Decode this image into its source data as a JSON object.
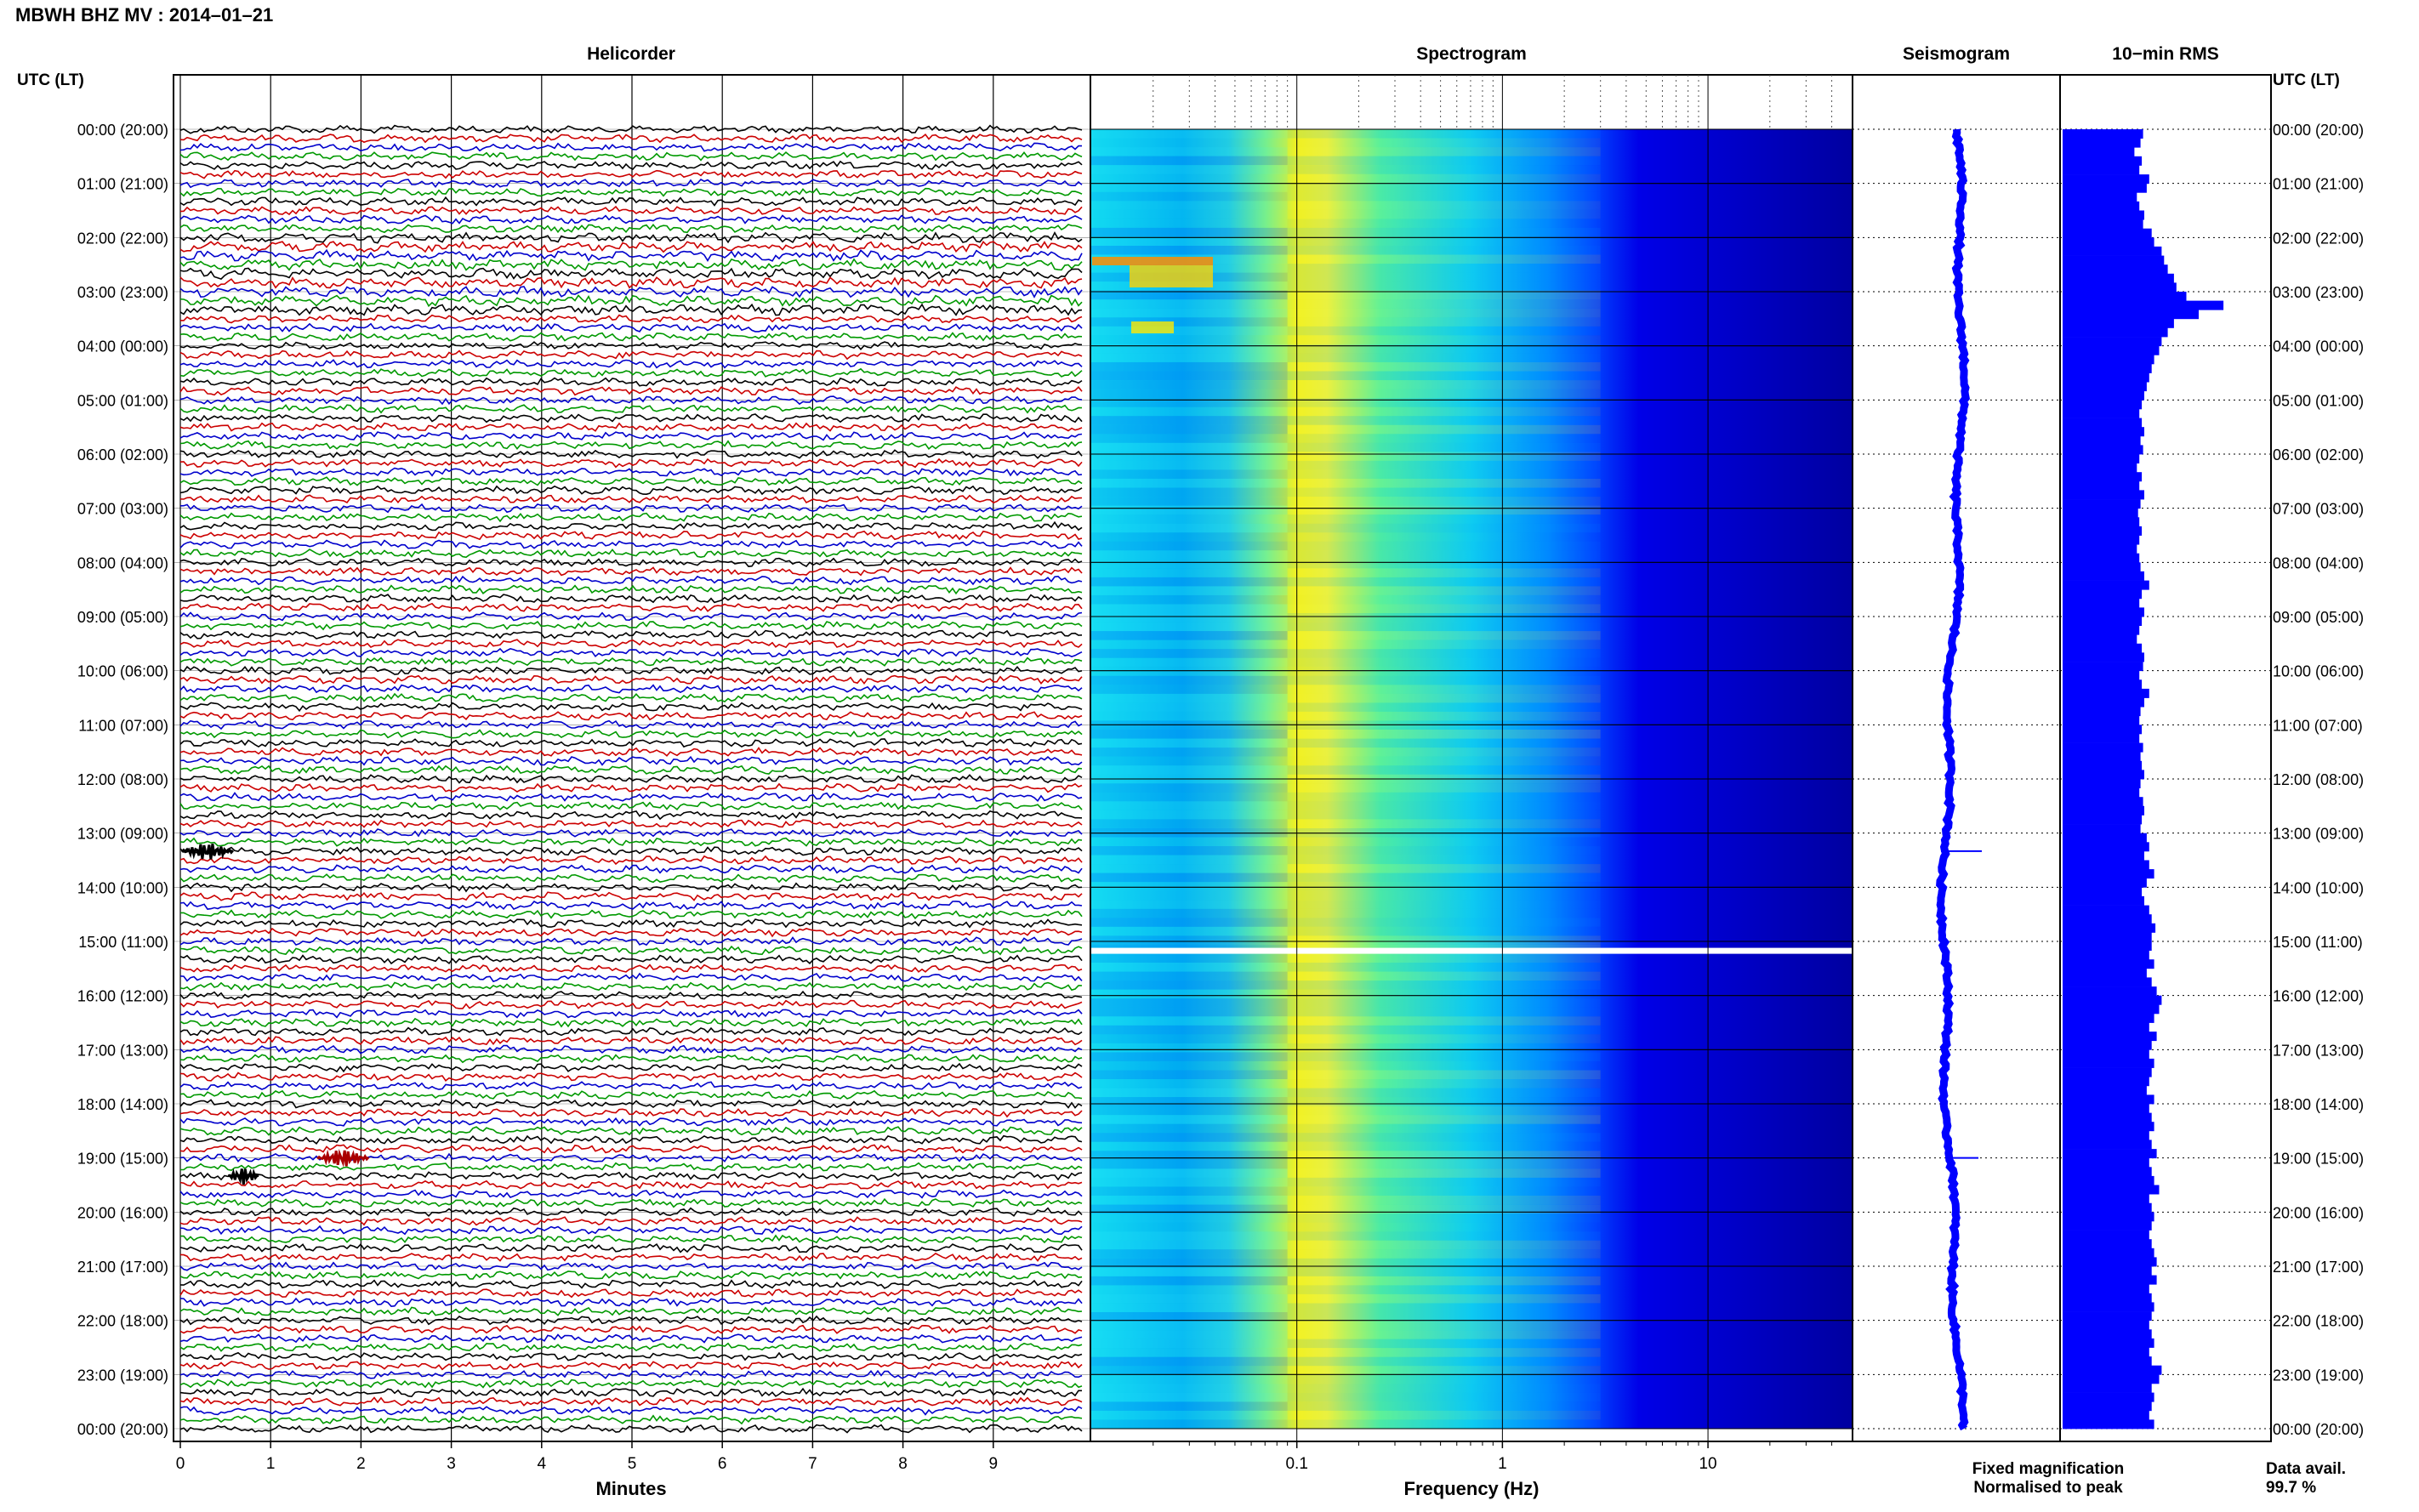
{
  "header": {
    "title": "MBWH BHZ MV : 2014–01–21"
  },
  "chart_data": [
    {
      "type": "line",
      "title": "Helicorder",
      "row_axis_label": "UTC (LT)",
      "xlabel": "Minutes",
      "xlim": [
        0,
        10
      ],
      "x_ticks": [
        "0",
        "1",
        "2",
        "3",
        "4",
        "5",
        "6",
        "7",
        "8",
        "9"
      ],
      "lines_per_hour": 6,
      "line_colors": [
        "#000000",
        "#cc0000",
        "#0000cc",
        "#009900"
      ],
      "row_labels": [
        "00:00 (20:00)",
        "01:00 (21:00)",
        "02:00 (22:00)",
        "03:00 (23:00)",
        "04:00 (00:00)",
        "05:00 (01:00)",
        "06:00 (02:00)",
        "07:00 (03:00)",
        "08:00 (04:00)",
        "09:00 (05:00)",
        "10:00 (06:00)",
        "11:00 (07:00)",
        "12:00 (08:00)",
        "13:00 (09:00)",
        "14:00 (10:00)",
        "15:00 (11:00)",
        "16:00 (12:00)",
        "17:00 (13:00)",
        "18:00 (14:00)",
        "19:00 (15:00)",
        "20:00 (16:00)",
        "21:00 (17:00)",
        "22:00 (18:00)",
        "23:00 (19:00)",
        "00:00 (20:00)"
      ],
      "events": [
        {
          "time": "13:20",
          "minute": 0.3
        },
        {
          "time": "19:00",
          "minute": 1.8
        },
        {
          "time": "19:20",
          "minute": 0.7
        }
      ]
    },
    {
      "type": "heatmap",
      "title": "Spectrogram",
      "xlabel": "Frequency (Hz)",
      "x_scale": "log",
      "xlim": [
        0.01,
        50
      ],
      "x_tick_labels": [
        "0.1",
        "1",
        "10"
      ],
      "colormap": [
        "#00008b",
        "#0000ff",
        "#0088ff",
        "#00e5ff",
        "#7fff7f",
        "#ffff00",
        "#ff8000",
        "#ff0000"
      ],
      "spectral_peak_hz": 0.3,
      "gap": "15:10"
    },
    {
      "type": "line",
      "title": "Seismogram"
    },
    {
      "type": "bar",
      "title": "10−min RMS",
      "color": "#0000ff",
      "values": [
        0.65,
        0.63,
        0.58,
        0.64,
        0.62,
        0.7,
        0.68,
        0.6,
        0.62,
        0.66,
        0.65,
        0.72,
        0.74,
        0.8,
        0.82,
        0.85,
        0.9,
        0.92,
        1.0,
        1.3,
        1.1,
        0.9,
        0.85,
        0.8,
        0.78,
        0.74,
        0.72,
        0.7,
        0.68,
        0.66,
        0.64,
        0.62,
        0.64,
        0.66,
        0.63,
        0.65,
        0.62,
        0.6,
        0.64,
        0.62,
        0.66,
        0.63,
        0.61,
        0.62,
        0.64,
        0.62,
        0.6,
        0.62,
        0.63,
        0.66,
        0.7,
        0.64,
        0.62,
        0.66,
        0.64,
        0.62,
        0.6,
        0.64,
        0.66,
        0.65,
        0.62,
        0.64,
        0.7,
        0.66,
        0.63,
        0.62,
        0.64,
        0.62,
        0.65,
        0.63,
        0.64,
        0.66,
        0.63,
        0.62,
        0.65,
        0.66,
        0.64,
        0.63,
        0.68,
        0.7,
        0.66,
        0.7,
        0.74,
        0.68,
        0.64,
        0.66,
        0.7,
        0.72,
        0.75,
        0.72,
        0.72,
        0.7,
        0.74,
        0.68,
        0.72,
        0.76,
        0.8,
        0.78,
        0.74,
        0.7,
        0.76,
        0.72,
        0.7,
        0.74,
        0.72,
        0.7,
        0.68,
        0.74,
        0.7,
        0.72,
        0.74,
        0.7,
        0.72,
        0.76,
        0.7,
        0.72,
        0.74,
        0.78,
        0.7,
        0.72,
        0.74,
        0.72,
        0.7,
        0.72,
        0.74,
        0.76,
        0.72,
        0.76,
        0.7,
        0.72,
        0.74,
        0.72,
        0.7,
        0.72,
        0.74,
        0.7,
        0.72,
        0.8,
        0.78,
        0.72,
        0.74,
        0.72,
        0.7,
        0.74
      ]
    }
  ],
  "legend": {
    "fixed": "Fixed magnification",
    "normalised": "Normalised to peak",
    "fixed_color": "#0000ff",
    "normalised_color": "#ff0000"
  },
  "availability": {
    "label": "Data avail.",
    "value": "99.7 %"
  }
}
